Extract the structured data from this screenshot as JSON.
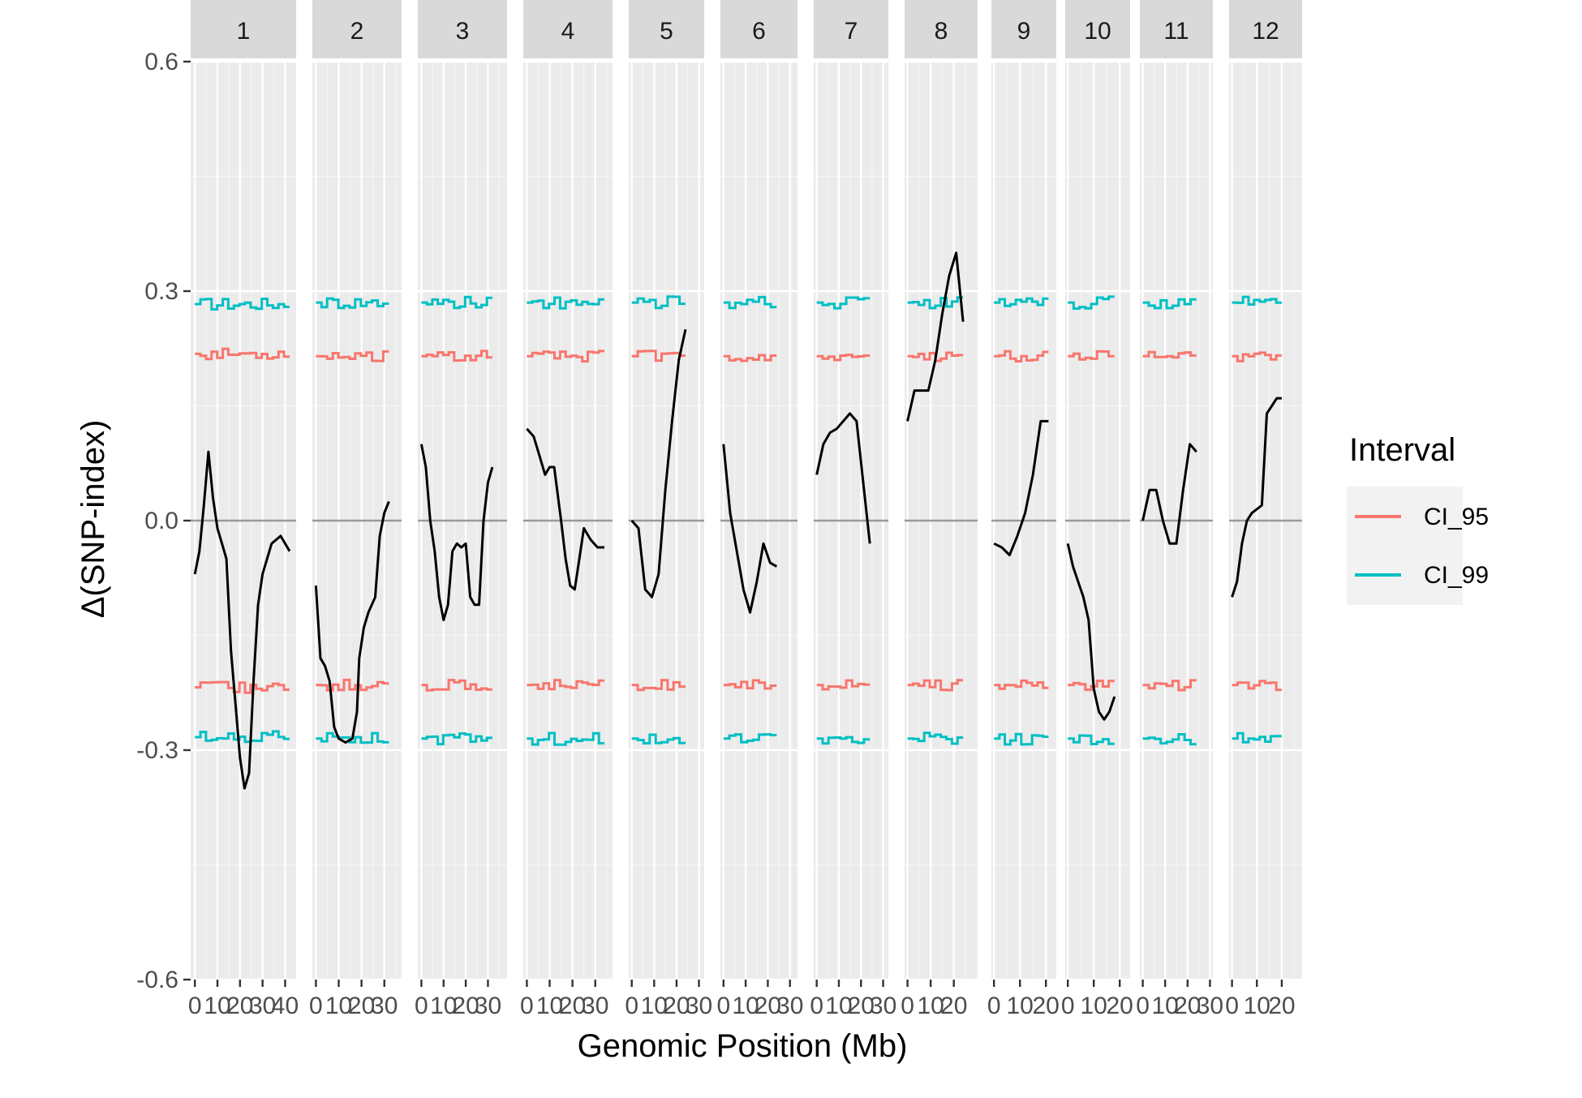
{
  "chart_data": {
    "type": "line",
    "title": "",
    "xlabel": "Genomic Position (Mb)",
    "ylabel": "Δ(SNP-index)",
    "ylim": [
      -0.6,
      0.6
    ],
    "y_ticks": [
      -0.6,
      -0.3,
      0.0,
      0.3,
      0.6
    ],
    "y_tick_labels": [
      "-0.6",
      "-0.3",
      "0.0",
      "0.3",
      "0.6"
    ],
    "grid": true,
    "legend": {
      "title": "Interval",
      "position": "right",
      "entries": [
        {
          "name": "CI_95",
          "color": "#F8766D"
        },
        {
          "name": "CI_99",
          "color": "#00BFC4"
        }
      ]
    },
    "colors": {
      "delta": "#000000",
      "ci95": "#F8766D",
      "ci99": "#00BFC4",
      "zero_line": "#999999",
      "panel_bg": "#EBEBEB",
      "strip_bg": "#D9D9D9"
    },
    "panels": [
      {
        "label": "1",
        "x_max": 43,
        "x_ticks": [
          0,
          10,
          20,
          30,
          40
        ],
        "x_tick_labels": [
          "0",
          "10",
          "20",
          "30",
          "40"
        ],
        "delta": [
          [
            0,
            -0.07
          ],
          [
            2,
            -0.04
          ],
          [
            4,
            0.02
          ],
          [
            6,
            0.09
          ],
          [
            8,
            0.03
          ],
          [
            10,
            -0.01
          ],
          [
            12,
            -0.03
          ],
          [
            14,
            -0.05
          ],
          [
            16,
            -0.17
          ],
          [
            18,
            -0.24
          ],
          [
            20,
            -0.31
          ],
          [
            22,
            -0.35
          ],
          [
            24,
            -0.33
          ],
          [
            26,
            -0.21
          ],
          [
            28,
            -0.11
          ],
          [
            30,
            -0.07
          ],
          [
            32,
            -0.05
          ],
          [
            34,
            -0.03
          ],
          [
            38,
            -0.02
          ],
          [
            42,
            -0.04
          ]
        ],
        "ci95": 0.218,
        "ci99": 0.283
      },
      {
        "label": "2",
        "x_max": 36,
        "x_ticks": [
          0,
          10,
          20,
          30
        ],
        "x_tick_labels": [
          "0",
          "10",
          "20",
          "30"
        ],
        "delta": [
          [
            0,
            -0.085
          ],
          [
            2,
            -0.18
          ],
          [
            4,
            -0.19
          ],
          [
            6,
            -0.21
          ],
          [
            8,
            -0.27
          ],
          [
            10,
            -0.285
          ],
          [
            13,
            -0.29
          ],
          [
            16,
            -0.285
          ],
          [
            18,
            -0.25
          ],
          [
            19,
            -0.18
          ],
          [
            21,
            -0.14
          ],
          [
            23,
            -0.12
          ],
          [
            26,
            -0.1
          ],
          [
            28,
            -0.02
          ],
          [
            30,
            0.01
          ],
          [
            32,
            0.025
          ]
        ],
        "ci95": 0.215,
        "ci99": 0.285
      },
      {
        "label": "3",
        "x_max": 37,
        "x_ticks": [
          0,
          10,
          20,
          30
        ],
        "x_tick_labels": [
          "0",
          "10",
          "20",
          "30"
        ],
        "delta": [
          [
            0,
            0.1
          ],
          [
            2,
            0.07
          ],
          [
            4,
            0.0
          ],
          [
            6,
            -0.04
          ],
          [
            8,
            -0.1
          ],
          [
            10,
            -0.13
          ],
          [
            12,
            -0.11
          ],
          [
            14,
            -0.04
          ],
          [
            16,
            -0.03
          ],
          [
            18,
            -0.035
          ],
          [
            20,
            -0.03
          ],
          [
            22,
            -0.1
          ],
          [
            24,
            -0.11
          ],
          [
            26,
            -0.11
          ],
          [
            28,
            0.0
          ],
          [
            30,
            0.05
          ],
          [
            32,
            0.07
          ]
        ],
        "ci95": 0.215,
        "ci99": 0.285
      },
      {
        "label": "4",
        "x_max": 36,
        "x_ticks": [
          0,
          10,
          20,
          30
        ],
        "x_tick_labels": [
          "0",
          "10",
          "20",
          "30"
        ],
        "delta": [
          [
            0,
            0.12
          ],
          [
            3,
            0.11
          ],
          [
            5,
            0.09
          ],
          [
            8,
            0.06
          ],
          [
            10,
            0.07
          ],
          [
            12,
            0.07
          ],
          [
            15,
            0.0
          ],
          [
            17,
            -0.05
          ],
          [
            19,
            -0.085
          ],
          [
            21,
            -0.09
          ],
          [
            23,
            -0.05
          ],
          [
            25,
            -0.01
          ],
          [
            28,
            -0.025
          ],
          [
            31,
            -0.035
          ],
          [
            34,
            -0.035
          ]
        ],
        "ci95": 0.215,
        "ci99": 0.285
      },
      {
        "label": "5",
        "x_max": 31,
        "x_ticks": [
          0,
          10,
          20,
          30
        ],
        "x_tick_labels": [
          "0",
          "10",
          "20",
          "30"
        ],
        "delta": [
          [
            0,
            0.0
          ],
          [
            3,
            -0.01
          ],
          [
            6,
            -0.09
          ],
          [
            9,
            -0.1
          ],
          [
            12,
            -0.07
          ],
          [
            15,
            0.04
          ],
          [
            18,
            0.13
          ],
          [
            21,
            0.21
          ],
          [
            24,
            0.25
          ]
        ],
        "ci95": 0.215,
        "ci99": 0.285
      },
      {
        "label": "6",
        "x_max": 32,
        "x_ticks": [
          0,
          10,
          20,
          30
        ],
        "x_tick_labels": [
          "0",
          "10",
          "20",
          "30"
        ],
        "delta": [
          [
            0,
            0.1
          ],
          [
            3,
            0.01
          ],
          [
            6,
            -0.04
          ],
          [
            9,
            -0.09
          ],
          [
            12,
            -0.12
          ],
          [
            15,
            -0.08
          ],
          [
            18,
            -0.03
          ],
          [
            21,
            -0.055
          ],
          [
            24,
            -0.06
          ]
        ],
        "ci95": 0.215,
        "ci99": 0.285
      },
      {
        "label": "7",
        "x_max": 31,
        "x_ticks": [
          0,
          10,
          20,
          30
        ],
        "x_tick_labels": [
          "0",
          "10",
          "20",
          "30"
        ],
        "delta": [
          [
            0,
            0.06
          ],
          [
            3,
            0.1
          ],
          [
            6,
            0.115
          ],
          [
            9,
            0.12
          ],
          [
            12,
            0.13
          ],
          [
            15,
            0.14
          ],
          [
            18,
            0.13
          ],
          [
            21,
            0.05
          ],
          [
            24,
            -0.03
          ]
        ],
        "ci95": 0.215,
        "ci99": 0.285
      },
      {
        "label": "8",
        "x_max": 29,
        "x_ticks": [
          0,
          10,
          20
        ],
        "x_tick_labels": [
          "0",
          "10",
          "20"
        ],
        "delta": [
          [
            0,
            0.13
          ],
          [
            3,
            0.17
          ],
          [
            6,
            0.17
          ],
          [
            9,
            0.17
          ],
          [
            12,
            0.21
          ],
          [
            15,
            0.27
          ],
          [
            18,
            0.32
          ],
          [
            21,
            0.35
          ],
          [
            24,
            0.26
          ]
        ],
        "ci95": 0.215,
        "ci99": 0.285
      },
      {
        "label": "9",
        "x_max": 23,
        "x_ticks": [
          0,
          10,
          20
        ],
        "x_tick_labels": [
          "0",
          "10",
          "20"
        ],
        "delta": [
          [
            0,
            -0.03
          ],
          [
            3,
            -0.035
          ],
          [
            6,
            -0.045
          ],
          [
            9,
            -0.02
          ],
          [
            12,
            0.01
          ],
          [
            15,
            0.06
          ],
          [
            18,
            0.13
          ],
          [
            21,
            0.13
          ]
        ],
        "ci95": 0.215,
        "ci99": 0.285
      },
      {
        "label": "10",
        "x_max": 23,
        "x_ticks": [
          0,
          10,
          20
        ],
        "x_tick_labels": [
          "0",
          "10",
          "20"
        ],
        "delta": [
          [
            0,
            -0.03
          ],
          [
            2,
            -0.06
          ],
          [
            4,
            -0.08
          ],
          [
            6,
            -0.1
          ],
          [
            8,
            -0.13
          ],
          [
            10,
            -0.22
          ],
          [
            12,
            -0.25
          ],
          [
            14,
            -0.26
          ],
          [
            16,
            -0.25
          ],
          [
            18,
            -0.23
          ]
        ],
        "ci95": 0.215,
        "ci99": 0.285
      },
      {
        "label": "11",
        "x_max": 30,
        "x_ticks": [
          0,
          10,
          20,
          30
        ],
        "x_tick_labels": [
          "0",
          "10",
          "20",
          "30"
        ],
        "delta": [
          [
            0,
            0.0
          ],
          [
            3,
            0.04
          ],
          [
            6,
            0.04
          ],
          [
            9,
            0.0
          ],
          [
            12,
            -0.03
          ],
          [
            15,
            -0.03
          ],
          [
            18,
            0.04
          ],
          [
            21,
            0.1
          ],
          [
            24,
            0.09
          ]
        ],
        "ci95": 0.215,
        "ci99": 0.285
      },
      {
        "label": "12",
        "x_max": 27,
        "x_ticks": [
          0,
          10,
          20
        ],
        "x_tick_labels": [
          "0",
          "10",
          "20"
        ],
        "delta": [
          [
            0,
            -0.1
          ],
          [
            2,
            -0.08
          ],
          [
            4,
            -0.03
          ],
          [
            6,
            0.0
          ],
          [
            8,
            0.01
          ],
          [
            10,
            0.015
          ],
          [
            12,
            0.02
          ],
          [
            14,
            0.14
          ],
          [
            16,
            0.15
          ],
          [
            18,
            0.16
          ],
          [
            20,
            0.16
          ]
        ],
        "ci95": 0.215,
        "ci99": 0.285
      }
    ]
  }
}
